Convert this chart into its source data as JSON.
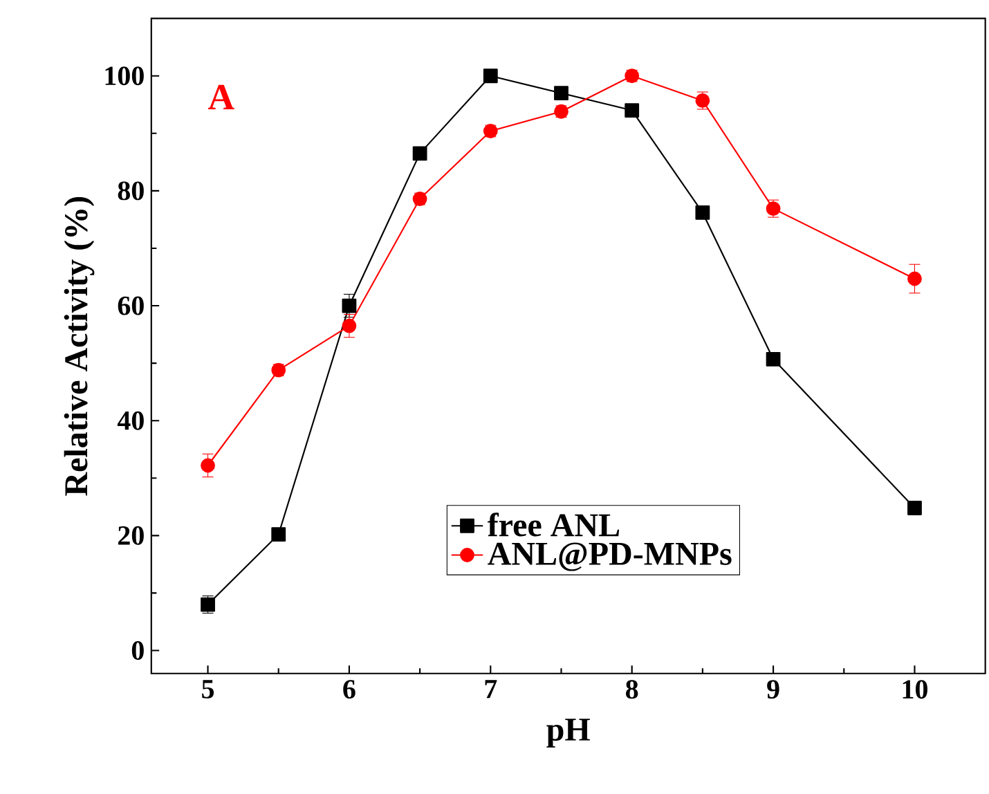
{
  "chart_data": {
    "type": "line",
    "xlabel": "pH",
    "ylabel": "Relative Activity (%)",
    "annotations": [
      "A"
    ],
    "series": [
      {
        "name": "free ANL",
        "color": "#000000",
        "marker": "square",
        "x": [
          5,
          5.5,
          6,
          6.5,
          7,
          7.5,
          8,
          8.5,
          9,
          10
        ],
        "values": [
          8,
          20.2,
          60,
          86.5,
          100,
          97,
          94,
          76.2,
          50.7,
          24.8
        ],
        "errors": [
          1.5,
          1,
          2,
          1,
          1,
          1,
          1,
          1,
          1,
          1
        ]
      },
      {
        "name": "ANL@PD-MNPs",
        "color": "#ff0000",
        "marker": "circle",
        "x": [
          5,
          5.5,
          6,
          6.5,
          7,
          7.5,
          8,
          8.5,
          9,
          10
        ],
        "values": [
          32.2,
          48.8,
          56.5,
          78.6,
          90.4,
          93.8,
          100,
          95.7,
          76.9,
          64.7
        ],
        "errors": [
          2,
          1,
          2,
          1,
          1,
          1,
          1,
          1.5,
          1.5,
          2.5
        ]
      }
    ],
    "xlim": [
      4.6,
      10.5
    ],
    "ylim": [
      -4,
      110
    ],
    "xticks": [
      5,
      6,
      7,
      8,
      9,
      10
    ],
    "yticks": [
      0,
      20,
      40,
      60,
      80,
      100
    ],
    "grid": false,
    "legend": "bottom",
    "line_style": "solid"
  }
}
